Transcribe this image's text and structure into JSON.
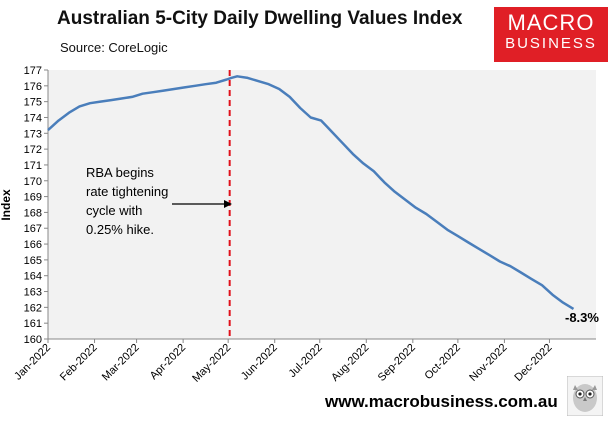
{
  "header": {
    "title": "Australian 5-City Daily Dwelling Values Index",
    "source": "Source: CoreLogic"
  },
  "logo": {
    "line1": "MACRO",
    "line2": "BUSINESS"
  },
  "footer": {
    "website": "www.macrobusiness.com.au"
  },
  "colors": {
    "series": "#4a7ebb",
    "marker": "#e0101a",
    "plot_bg": "#f2f2f2",
    "logo_bg": "#e01f26"
  },
  "chart_data": {
    "type": "line",
    "title": "Australian 5-City Daily Dwelling Values Index",
    "xlabel": "",
    "ylabel": "Index",
    "ylim": [
      160,
      177
    ],
    "yticks": [
      160,
      161,
      162,
      163,
      164,
      165,
      166,
      167,
      168,
      169,
      170,
      171,
      172,
      173,
      174,
      175,
      176,
      177
    ],
    "xticks": [
      "Jan-2022",
      "Feb-2022",
      "Mar-2022",
      "Apr-2022",
      "May-2022",
      "Jun-2022",
      "Jul-2022",
      "Aug-2022",
      "Sep-2022",
      "Oct-2022",
      "Nov-2022",
      "Dec-2022"
    ],
    "grid": false,
    "series": [
      {
        "name": "5-City Daily Dwelling Values Index",
        "day_of_year": [
          1,
          8,
          15,
          22,
          29,
          36,
          43,
          50,
          57,
          64,
          71,
          78,
          85,
          92,
          99,
          106,
          113,
          120,
          123,
          127,
          134,
          141,
          148,
          155,
          162,
          169,
          176,
          183,
          190,
          197,
          204,
          211,
          218,
          225,
          232,
          239,
          246,
          253,
          260,
          267,
          274,
          281,
          288,
          295,
          302,
          309,
          316,
          323,
          330,
          337,
          344,
          351
        ],
        "values": [
          173.2,
          173.8,
          174.3,
          174.7,
          174.9,
          175.0,
          175.1,
          175.2,
          175.3,
          175.5,
          175.6,
          175.7,
          175.8,
          175.9,
          176.0,
          176.1,
          176.2,
          176.4,
          176.5,
          176.6,
          176.5,
          176.3,
          176.1,
          175.8,
          175.3,
          174.6,
          174.0,
          173.8,
          173.1,
          172.4,
          171.7,
          171.1,
          170.6,
          169.9,
          169.3,
          168.8,
          168.3,
          167.9,
          167.4,
          166.9,
          166.5,
          166.1,
          165.7,
          165.3,
          164.9,
          164.6,
          164.2,
          163.8,
          163.4,
          162.8,
          162.3,
          161.9
        ]
      }
    ],
    "annotations": {
      "event_line_day": 122,
      "event_lines": [
        "RBA begins",
        "rate tightening",
        "cycle with",
        "0.25% hike."
      ],
      "end_label": "-8.3%"
    }
  }
}
